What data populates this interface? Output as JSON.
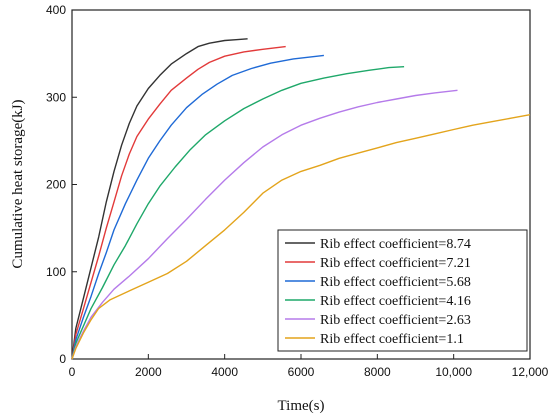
{
  "chart_data": {
    "type": "line",
    "title": "",
    "xlabel": "Time(s)",
    "ylabel": "Cumulative heat storage(kJ)",
    "xlim": [
      0,
      12000
    ],
    "ylim": [
      0,
      400
    ],
    "x_ticks": [
      0,
      2000,
      4000,
      6000,
      8000,
      10000,
      12000
    ],
    "x_tick_labels": [
      "0",
      "2000",
      "4000",
      "6000",
      "8000",
      "10,000",
      "12,000"
    ],
    "y_ticks": [
      0,
      100,
      200,
      300,
      400
    ],
    "y_tick_labels": [
      "0",
      "100",
      "200",
      "300",
      "400"
    ],
    "grid": false,
    "legend_position": "bottom-right",
    "series": [
      {
        "name": "Rib effect coefficient=8.74",
        "color": "#333333",
        "x": [
          0,
          100,
          300,
          500,
          700,
          900,
          1100,
          1300,
          1500,
          1700,
          2000,
          2300,
          2600,
          3000,
          3300,
          3600,
          4000,
          4300,
          4600
        ],
        "y": [
          0,
          35,
          70,
          105,
          140,
          180,
          215,
          245,
          270,
          290,
          310,
          325,
          338,
          350,
          358,
          362,
          365,
          366,
          367
        ]
      },
      {
        "name": "Rib effect coefficient=7.21",
        "color": "#e23a3a",
        "x": [
          0,
          100,
          300,
          500,
          700,
          900,
          1100,
          1300,
          1500,
          1700,
          2000,
          2300,
          2600,
          3000,
          3300,
          3600,
          4000,
          4500,
          5000,
          5600
        ],
        "y": [
          0,
          28,
          58,
          88,
          118,
          150,
          180,
          210,
          235,
          255,
          275,
          292,
          308,
          322,
          332,
          340,
          347,
          352,
          355,
          358
        ]
      },
      {
        "name": "Rib effect coefficient=5.68",
        "color": "#1f6ad6",
        "x": [
          0,
          100,
          300,
          500,
          700,
          900,
          1100,
          1400,
          1700,
          2000,
          2300,
          2600,
          3000,
          3400,
          3800,
          4200,
          4700,
          5200,
          5800,
          6600
        ],
        "y": [
          0,
          22,
          48,
          72,
          98,
          122,
          148,
          178,
          205,
          230,
          250,
          268,
          288,
          303,
          315,
          325,
          333,
          339,
          344,
          348
        ]
      },
      {
        "name": "Rib effect coefficient=4.16",
        "color": "#1fa86a",
        "x": [
          0,
          100,
          300,
          500,
          800,
          1100,
          1400,
          1700,
          2000,
          2300,
          2700,
          3100,
          3500,
          4000,
          4500,
          5000,
          5500,
          6000,
          6600,
          7200,
          7800,
          8300,
          8700
        ],
        "y": [
          0,
          18,
          38,
          58,
          82,
          108,
          130,
          155,
          178,
          198,
          220,
          240,
          257,
          273,
          287,
          298,
          308,
          316,
          322,
          327,
          331,
          334,
          335
        ]
      },
      {
        "name": "Rib effect coefficient=2.63",
        "color": "#b57bea",
        "x": [
          0,
          100,
          300,
          500,
          800,
          1100,
          1500,
          2000,
          2500,
          3000,
          3500,
          4000,
          4500,
          5000,
          5500,
          6000,
          6500,
          7000,
          7500,
          8000,
          8500,
          9000,
          9500,
          10100
        ],
        "y": [
          0,
          14,
          32,
          48,
          65,
          80,
          95,
          115,
          138,
          160,
          183,
          205,
          225,
          243,
          257,
          268,
          276,
          283,
          289,
          294,
          298,
          302,
          305,
          308
        ]
      },
      {
        "name": "Rib effect coefficient=1.1",
        "color": "#e3a41c",
        "x": [
          0,
          100,
          300,
          500,
          700,
          1000,
          1500,
          2000,
          2500,
          3000,
          3500,
          4000,
          4500,
          5000,
          5500,
          6000,
          6500,
          7000,
          7500,
          8000,
          8500,
          9000,
          9500,
          10000,
          10500,
          11000,
          11500,
          12000
        ],
        "y": [
          0,
          12,
          30,
          45,
          58,
          68,
          78,
          88,
          98,
          112,
          130,
          148,
          168,
          190,
          205,
          215,
          222,
          230,
          236,
          242,
          248,
          253,
          258,
          263,
          268,
          272,
          276,
          280
        ]
      }
    ]
  }
}
